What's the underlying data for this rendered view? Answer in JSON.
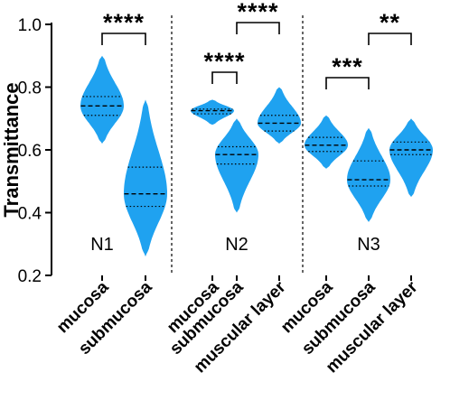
{
  "chart_data": {
    "type": "violin",
    "ylabel": "Transmittance",
    "ylim": [
      0.2,
      1.0
    ],
    "yticks": [
      "0.2",
      "0.4",
      "0.6",
      "0.8",
      "1.0"
    ],
    "violin_color": "#1fa2f0",
    "groups": [
      {
        "name": "N1",
        "categories": [
          {
            "label": "mucosa",
            "min": 0.62,
            "max": 0.9,
            "median": 0.74,
            "q1": 0.71,
            "q3": 0.77,
            "mode": 0.74
          },
          {
            "label": "submucosa",
            "min": 0.26,
            "max": 0.76,
            "median": 0.46,
            "q1": 0.42,
            "q3": 0.545,
            "mode": 0.46
          }
        ],
        "comparisons": [
          {
            "from": 0,
            "to": 1,
            "label": "****"
          }
        ]
      },
      {
        "name": "N2",
        "categories": [
          {
            "label": "mucosa",
            "min": 0.68,
            "max": 0.76,
            "median": 0.725,
            "q1": 0.715,
            "q3": 0.73,
            "mode": 0.725
          },
          {
            "label": "submucosa",
            "min": 0.4,
            "max": 0.7,
            "median": 0.585,
            "q1": 0.555,
            "q3": 0.61,
            "mode": 0.585
          },
          {
            "label": "muscular layer",
            "min": 0.62,
            "max": 0.8,
            "median": 0.685,
            "q1": 0.66,
            "q3": 0.71,
            "mode": 0.685
          }
        ],
        "comparisons": [
          {
            "from": 0,
            "to": 1,
            "label": "****"
          },
          {
            "from": 1,
            "to": 2,
            "label": "****"
          }
        ]
      },
      {
        "name": "N3",
        "categories": [
          {
            "label": "mucosa",
            "min": 0.54,
            "max": 0.71,
            "median": 0.615,
            "q1": 0.595,
            "q3": 0.64,
            "mode": 0.615
          },
          {
            "label": "submucosa",
            "min": 0.37,
            "max": 0.67,
            "median": 0.505,
            "q1": 0.485,
            "q3": 0.565,
            "mode": 0.505
          },
          {
            "label": "muscular layer",
            "min": 0.45,
            "max": 0.7,
            "median": 0.6,
            "q1": 0.585,
            "q3": 0.625,
            "mode": 0.6
          }
        ],
        "comparisons": [
          {
            "from": 0,
            "to": 1,
            "label": "***"
          },
          {
            "from": 1,
            "to": 2,
            "label": "**"
          }
        ]
      }
    ]
  }
}
